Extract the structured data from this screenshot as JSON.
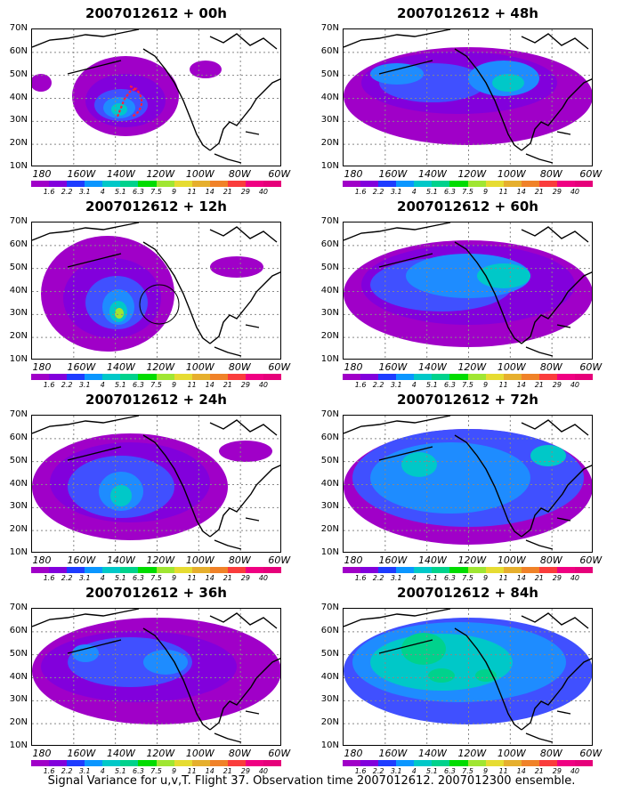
{
  "caption": "Signal Variance for u,v,T. Flight 37. Observation time 2007012612. 2007012300 ensemble.",
  "panels": [
    {
      "title": "2007012612 + 00h"
    },
    {
      "title": "2007012612 + 48h"
    },
    {
      "title": "2007012612 + 12h"
    },
    {
      "title": "2007012612 + 60h"
    },
    {
      "title": "2007012612 + 24h"
    },
    {
      "title": "2007012612 + 72h"
    },
    {
      "title": "2007012612 + 36h"
    },
    {
      "title": "2007012612 + 84h"
    }
  ],
  "axes": {
    "lat_labels": [
      "70N",
      "60N",
      "50N",
      "40N",
      "30N",
      "20N",
      "10N"
    ],
    "lon_labels": [
      "180",
      "160W",
      "140W",
      "120W",
      "100W",
      "80W",
      "60W"
    ]
  },
  "colorbar": {
    "labels": [
      "1.6",
      "2.2",
      "3.1",
      "4",
      "5.1",
      "6.3",
      "7.5",
      "9",
      "11",
      "14",
      "21",
      "29",
      "40"
    ],
    "colors": [
      "#a000c8",
      "#8200dc",
      "#1e3cff",
      "#0a96ff",
      "#00c8c8",
      "#00d28c",
      "#00dc00",
      "#a0e632",
      "#e6dc32",
      "#e6af2d",
      "#f08228",
      "#fa3c3c",
      "#f00082",
      "#e6007a"
    ]
  },
  "colors": {
    "fill_colors": [
      "#a000c8",
      "#8200dc",
      "#4050ff",
      "#1e8cff",
      "#00c8c8",
      "#00d28c",
      "#a0e632"
    ]
  }
}
